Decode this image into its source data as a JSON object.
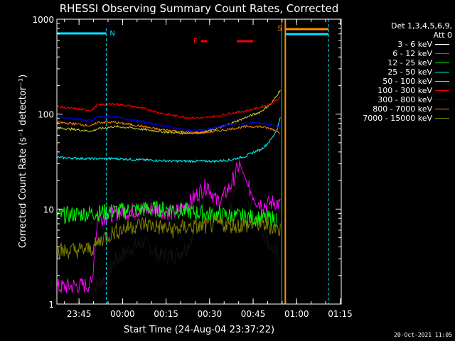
{
  "chart_data": {
    "type": "line",
    "title": "RHESSI Observing Summary Count Rates, Corrected",
    "xlabel": "Start Time (24-Aug-04 23:37:22)",
    "ylabel": "Corrected Count Rate (s⁻¹ detector⁻¹)",
    "y_scale": "log",
    "ylim": [
      1,
      1000
    ],
    "xlim_minutes_from_start": [
      0,
      98
    ],
    "x_ticks": [
      "23:45",
      "00:00",
      "00:15",
      "00:30",
      "00:45",
      "01:00",
      "01:15"
    ],
    "y_ticks": [
      "1",
      "10",
      "100",
      "1000"
    ],
    "grid": false,
    "legend_position": "right",
    "detector_note": "Det 1,3,4,5,6,9,",
    "attenuator_note": "Att 0",
    "annotations": [
      {
        "label": "N",
        "color": "#00e5ff"
      },
      {
        "label": "F",
        "color": "#ff0000"
      },
      {
        "label": "S",
        "color": "#ff8c00"
      }
    ],
    "series": [
      {
        "name": "3 - 6 keV",
        "color": "#000000",
        "x_min": [
          12,
          16,
          20,
          25,
          30,
          35,
          40,
          45,
          48,
          50,
          52,
          55,
          57,
          60,
          63,
          66,
          69,
          72,
          75,
          77
        ],
        "values": [
          1.4,
          1.8,
          2.8,
          3.8,
          4.5,
          3.3,
          3.2,
          4.0,
          7.0,
          13,
          17,
          8,
          6.5,
          11,
          28,
          12,
          8,
          5,
          3.5,
          3
        ]
      },
      {
        "name": "6 - 12 keV",
        "color": "#ff00ff",
        "x_min": [
          0,
          12,
          14,
          17,
          20,
          25,
          30,
          35,
          40,
          45,
          48,
          50,
          52,
          55,
          57,
          60,
          63,
          66,
          69,
          72,
          75,
          77
        ],
        "values": [
          1.5,
          1.6,
          8,
          8.5,
          9,
          9.5,
          10,
          10,
          9,
          11,
          14,
          16,
          18,
          12,
          13,
          18,
          30,
          17,
          12,
          11,
          12,
          11
        ]
      },
      {
        "name": "12 - 25 keV",
        "color": "#00ff00",
        "x_min": [
          0,
          10,
          20,
          30,
          40,
          50,
          60,
          70,
          76
        ],
        "values": [
          8.5,
          9,
          9.5,
          10,
          10,
          9,
          8.5,
          8,
          8
        ]
      },
      {
        "name": "25 - 50 keV",
        "color": "#00ffff",
        "x_min": [
          0,
          10,
          20,
          30,
          40,
          50,
          55,
          60,
          65,
          68,
          70,
          72,
          74,
          76,
          77
        ],
        "values": [
          35,
          34,
          34,
          33,
          32,
          32,
          32,
          33,
          36,
          40,
          42,
          47,
          55,
          70,
          95
        ]
      },
      {
        "name": "50 - 100 keV",
        "color": "#cccc33",
        "x_min": [
          0,
          8,
          12,
          14,
          20,
          25,
          30,
          35,
          40,
          45,
          50,
          55,
          60,
          65,
          70,
          74,
          77
        ],
        "values": [
          72,
          68,
          66,
          70,
          74,
          72,
          69,
          66,
          64,
          63,
          64,
          70,
          80,
          92,
          105,
          130,
          180
        ]
      },
      {
        "name": "100 - 300 keV",
        "color": "#ff0000",
        "x_min": [
          0,
          8,
          12,
          14,
          20,
          25,
          30,
          35,
          40,
          45,
          50,
          55,
          60,
          65,
          70,
          74,
          77
        ],
        "values": [
          120,
          112,
          110,
          125,
          128,
          122,
          115,
          104,
          97,
          92,
          91,
          95,
          102,
          108,
          118,
          130,
          150
        ]
      },
      {
        "name": "300 - 800 keV",
        "color": "#0000ff",
        "x_min": [
          0,
          8,
          12,
          14,
          20,
          25,
          30,
          35,
          40,
          45,
          50,
          55,
          60,
          65,
          70,
          74,
          77
        ],
        "values": [
          93,
          88,
          85,
          94,
          93,
          88,
          83,
          77,
          72,
          68,
          68,
          72,
          78,
          80,
          81,
          78,
          72
        ]
      },
      {
        "name": "800 - 7000 keV",
        "color": "#ff8c00",
        "x_min": [
          0,
          8,
          12,
          14,
          20,
          25,
          30,
          35,
          40,
          45,
          50,
          55,
          60,
          65,
          70,
          74,
          77
        ],
        "values": [
          82,
          78,
          75,
          82,
          82,
          78,
          74,
          69,
          67,
          64,
          64,
          66,
          70,
          74,
          74,
          70,
          64
        ]
      },
      {
        "name": "7000 - 15000 keV",
        "color": "#808000",
        "x_min": [
          0,
          8,
          12,
          16,
          20,
          25,
          30,
          35,
          40,
          45,
          50,
          55,
          60,
          65,
          70,
          74,
          77
        ],
        "values": [
          3.6,
          3.7,
          3.8,
          5,
          5.8,
          6.5,
          7,
          6.5,
          6,
          6.5,
          6.5,
          7,
          6.8,
          6.7,
          7,
          6.5,
          6
        ]
      }
    ]
  },
  "page": {
    "timestamp": "20-Oct-2021 11:05"
  }
}
